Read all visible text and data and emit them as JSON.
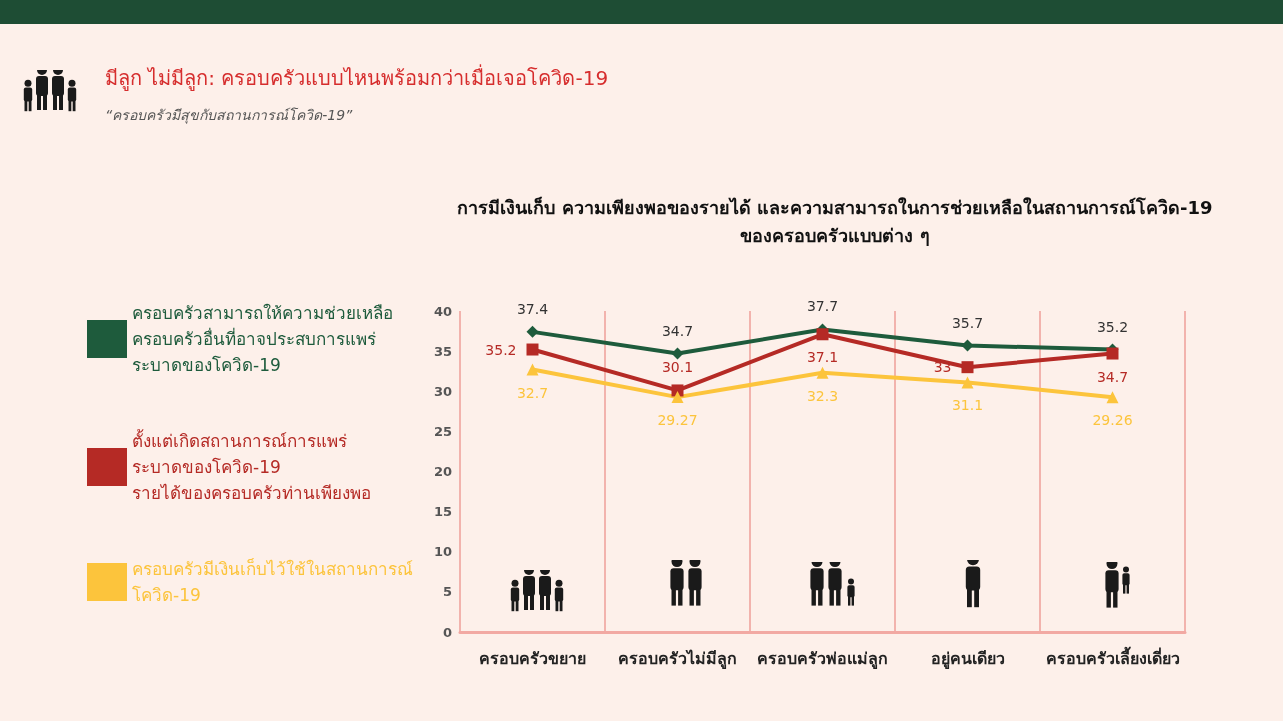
{
  "chart_data": {
    "type": "line",
    "title": "การมีเงินเก็บ ความเพียงพอของรายได้ และความสามารถในการช่วยเหลือในสถานการณ์โควิด-19\nของครอบครัวแบบต่าง ๆ",
    "annotations": [
      "มีลูก ไม่มีลูก: ครอบครัวแบบไหนพร้อมกว่าเมื่อเจอโควิด-19",
      "“ครอบครัวมีสุขกับสถานการณ์โควิด-19”"
    ],
    "categories": [
      "ครอบครัวขยาย",
      "ครอบครัวไม่มีลูก",
      "ครอบครัวพ่อแม่ลูก",
      "อยู่คนเดียว",
      "ครอบครัวเลี้ยงเดี่ยว"
    ],
    "series": [
      {
        "name": "ครอบครัวสามารถให้ความช่วยเหลือ\nครอบครัวอื่นที่อาจประสบการแพร่\nระบาดของโควิด-19",
        "color": "#1e5b3c",
        "marker": "diamond",
        "values": [
          37.4,
          34.7,
          37.7,
          35.7,
          35.2
        ]
      },
      {
        "name": "ตั้งแต่เกิดสถานการณ์การแพร่\nระบาดของโควิด-19\nรายได้ของครอบครัวท่านเพียงพอ",
        "color": "#b52a25",
        "marker": "square",
        "values": [
          35.2,
          30.1,
          37.1,
          33,
          34.7
        ]
      },
      {
        "name": "ครอบครัวมีเงินเก็บไว้ใช้ในสถานการณ์\nโควิด-19",
        "color": "#fcc43c",
        "marker": "triangle",
        "values": [
          32.7,
          29.27,
          32.3,
          31.1,
          29.26
        ]
      }
    ],
    "ylim": [
      0,
      40
    ],
    "yticks": [
      0,
      5,
      10,
      15,
      20,
      25,
      30,
      35,
      40
    ],
    "grid": "x",
    "legend": "left",
    "data_labels": true
  }
}
